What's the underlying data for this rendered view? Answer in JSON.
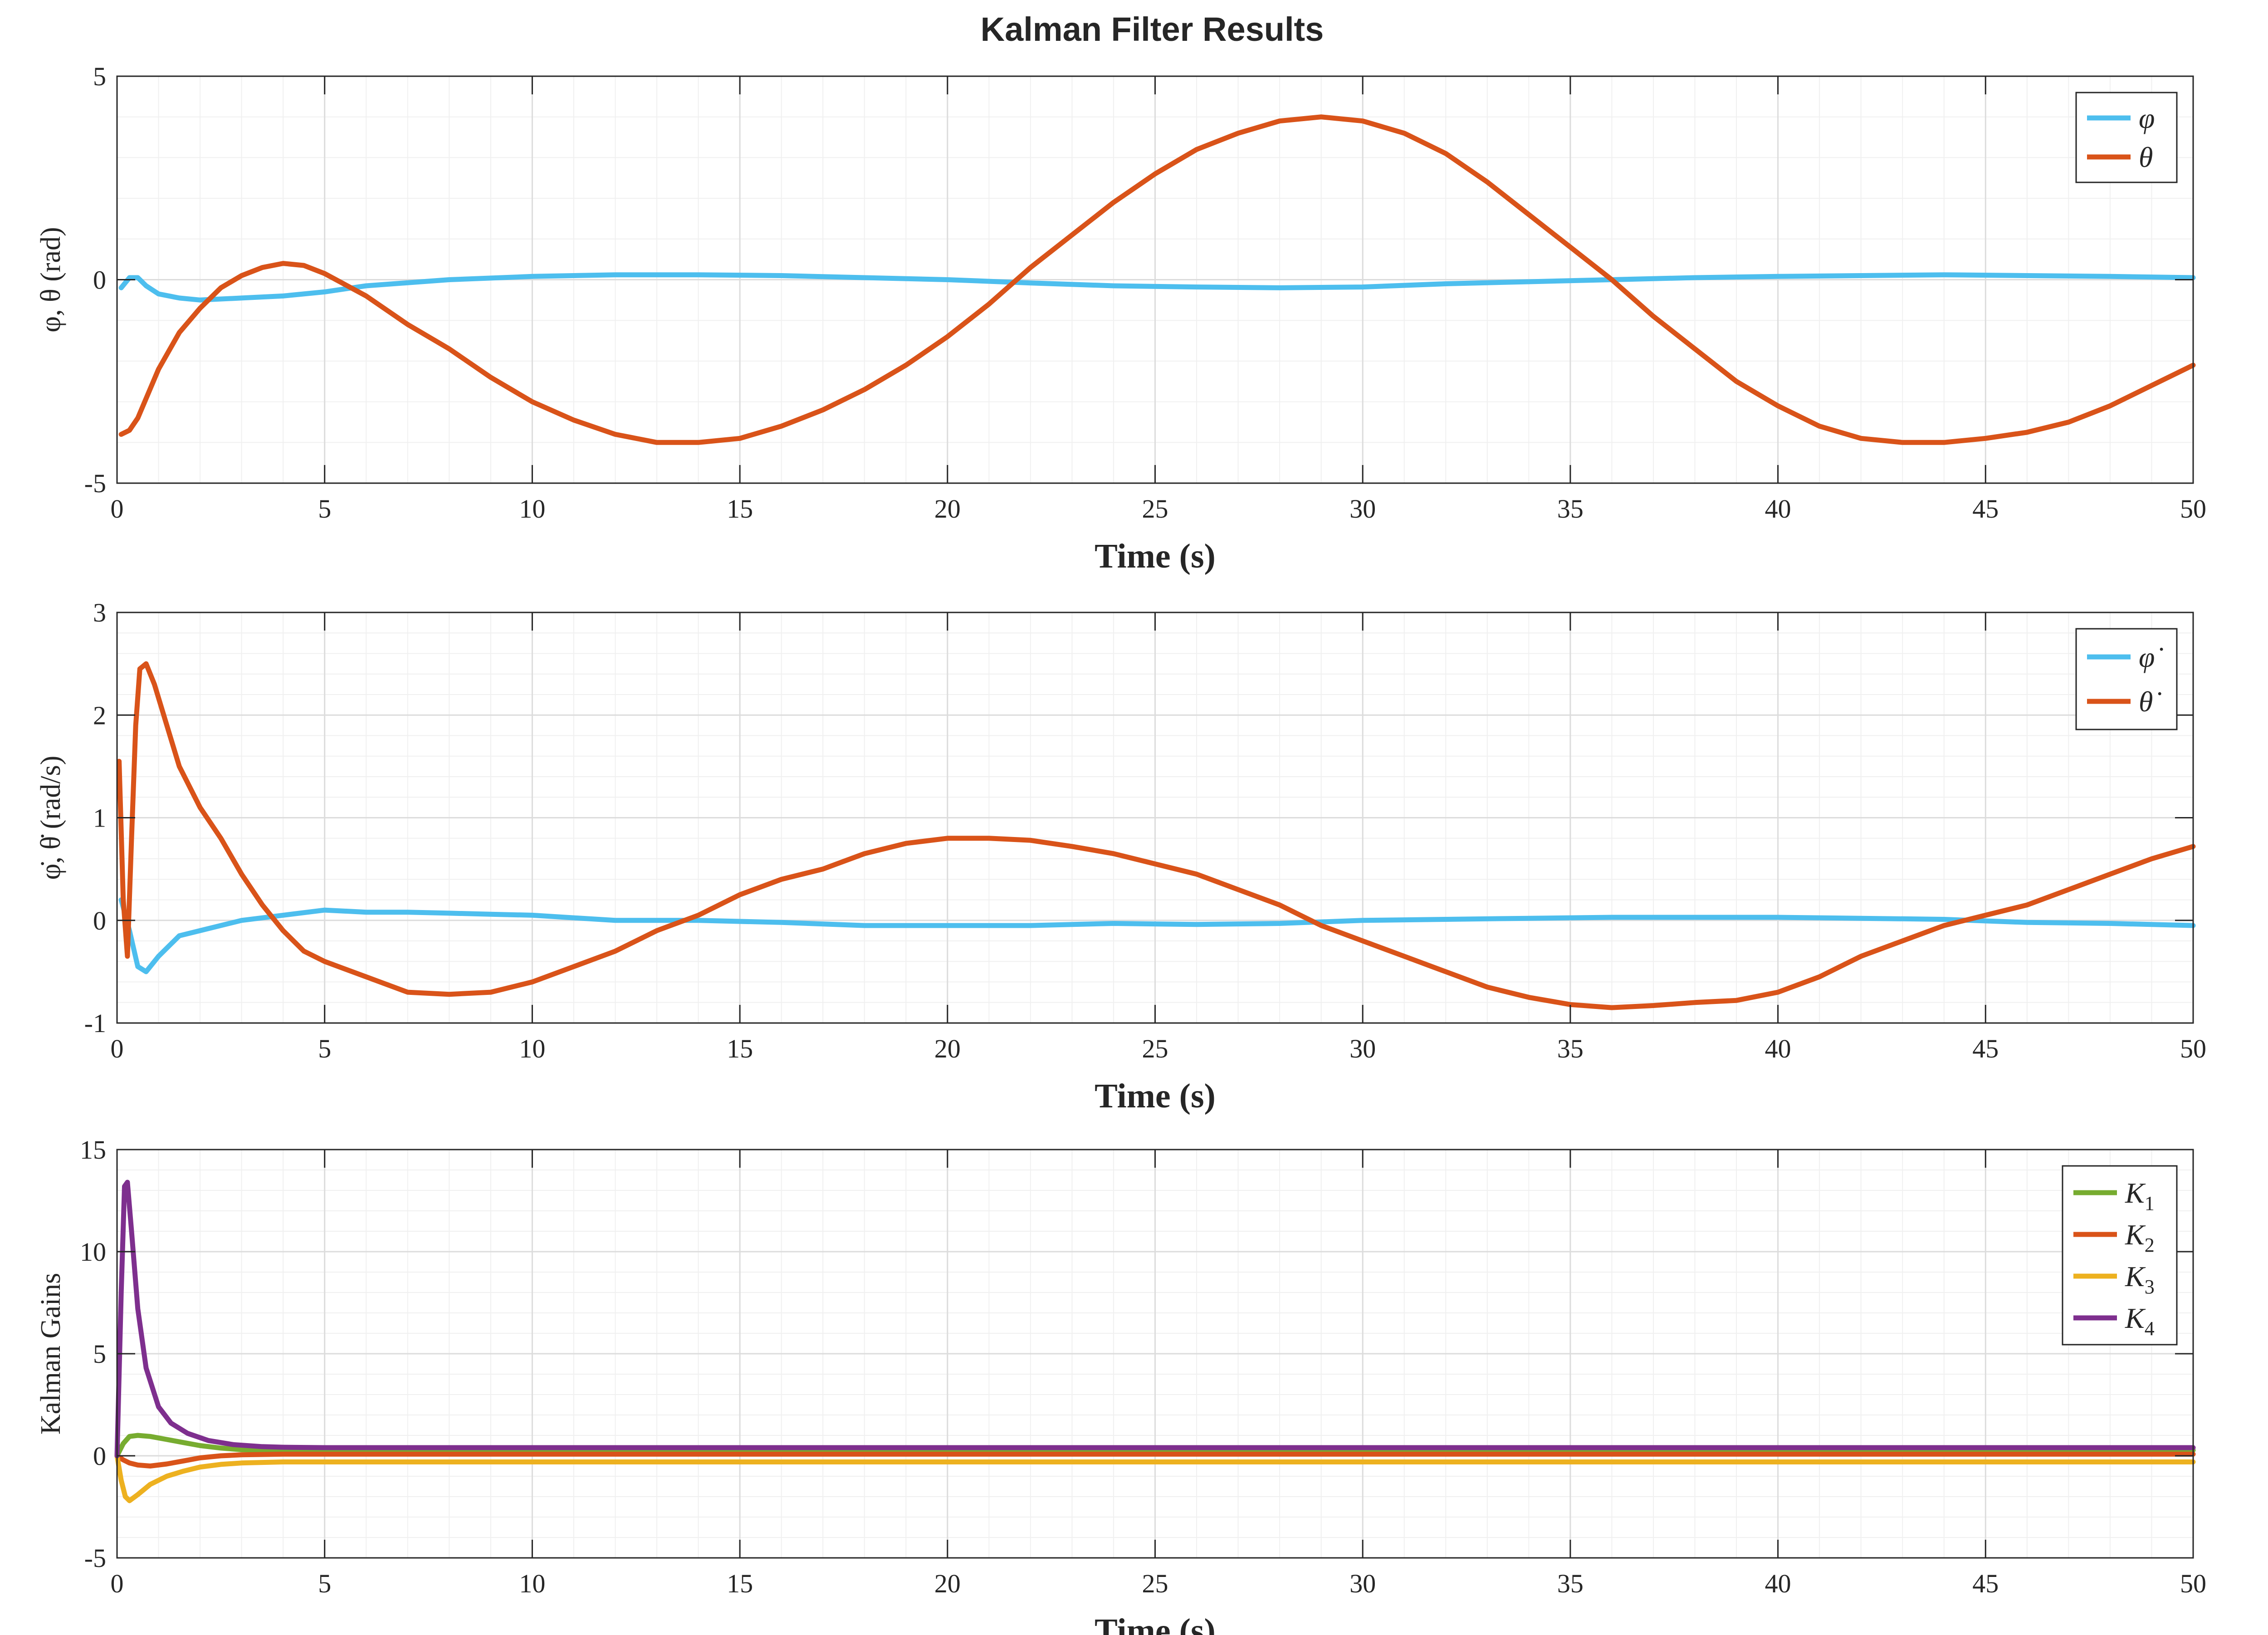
{
  "figure": {
    "title": "Kalman Filter Results"
  },
  "chart_data": [
    {
      "type": "line",
      "title": "Kalman Filter Results",
      "xlabel": "Time (s)",
      "ylabel": "φ, θ (rad)",
      "xlim": [
        0,
        50
      ],
      "ylim": [
        -5,
        5
      ],
      "xticks": [
        0,
        5,
        10,
        15,
        20,
        25,
        30,
        35,
        40,
        45,
        50
      ],
      "yticks": [
        -5,
        0,
        5
      ],
      "grid": true,
      "minor_grid": true,
      "legend_position": "top-right",
      "series": [
        {
          "name": "φ",
          "color": "#4DBEEE",
          "x": [
            0.1,
            0.3,
            0.5,
            0.7,
            1,
            1.5,
            2,
            3,
            4,
            5,
            6,
            8,
            10,
            12,
            14,
            16,
            18,
            20,
            22,
            24,
            26,
            28,
            30,
            32,
            34,
            36,
            38,
            40,
            42,
            44,
            46,
            48,
            50
          ],
          "y": [
            -0.2,
            0.05,
            0.05,
            -0.15,
            -0.35,
            -0.45,
            -0.5,
            -0.45,
            -0.4,
            -0.3,
            -0.15,
            0,
            0.08,
            0.12,
            0.12,
            0.1,
            0.05,
            0,
            -0.08,
            -0.15,
            -0.18,
            -0.2,
            -0.18,
            -0.1,
            -0.05,
            0,
            0.05,
            0.08,
            0.1,
            0.12,
            0.1,
            0.08,
            0.05
          ]
        },
        {
          "name": "θ",
          "color": "#D95319",
          "x": [
            0.1,
            0.3,
            0.5,
            1,
            1.5,
            2,
            2.5,
            3,
            3.5,
            4,
            4.5,
            5,
            6,
            7,
            8,
            9,
            10,
            11,
            12,
            13,
            14,
            15,
            16,
            17,
            18,
            19,
            20,
            21,
            22,
            23,
            24,
            25,
            26,
            27,
            28,
            29,
            30,
            31,
            32,
            33,
            34,
            35,
            36,
            37,
            38,
            39,
            40,
            41,
            42,
            43,
            44,
            45,
            46,
            47,
            48,
            49,
            50
          ],
          "y": [
            -3.8,
            -3.7,
            -3.4,
            -2.2,
            -1.3,
            -0.7,
            -0.2,
            0.1,
            0.3,
            0.4,
            0.35,
            0.15,
            -0.4,
            -1.1,
            -1.7,
            -2.4,
            -3,
            -3.45,
            -3.8,
            -4,
            -4,
            -3.9,
            -3.6,
            -3.2,
            -2.7,
            -2.1,
            -1.4,
            -0.6,
            0.3,
            1.1,
            1.9,
            2.6,
            3.2,
            3.6,
            3.9,
            4,
            3.9,
            3.6,
            3.1,
            2.4,
            1.6,
            0.8,
            0,
            -0.9,
            -1.7,
            -2.5,
            -3.1,
            -3.6,
            -3.9,
            -4,
            -4,
            -3.9,
            -3.75,
            -3.5,
            -3.1,
            -2.6,
            -2.1
          ]
        }
      ]
    },
    {
      "type": "line",
      "xlabel": "Time (s)",
      "ylabel": "φ̇, θ̇ (rad/s)",
      "xlim": [
        0,
        50
      ],
      "ylim": [
        -1,
        3
      ],
      "xticks": [
        0,
        5,
        10,
        15,
        20,
        25,
        30,
        35,
        40,
        45,
        50
      ],
      "yticks": [
        -1,
        0,
        1,
        2,
        3
      ],
      "grid": true,
      "minor_grid": true,
      "legend_position": "top-right",
      "series": [
        {
          "name": "φ̇",
          "color": "#4DBEEE",
          "x": [
            0.1,
            0.3,
            0.5,
            0.7,
            1,
            1.5,
            2,
            3,
            4,
            5,
            6,
            7,
            8,
            9,
            10,
            12,
            14,
            16,
            18,
            20,
            22,
            24,
            26,
            28,
            30,
            32,
            34,
            36,
            38,
            40,
            42,
            44,
            46,
            48,
            50
          ],
          "y": [
            0.2,
            -0.1,
            -0.45,
            -0.5,
            -0.35,
            -0.15,
            -0.1,
            0,
            0.05,
            0.1,
            0.08,
            0.08,
            0.07,
            0.06,
            0.05,
            0,
            0,
            -0.02,
            -0.05,
            -0.05,
            -0.05,
            -0.03,
            -0.04,
            -0.03,
            0,
            0.01,
            0.02,
            0.03,
            0.03,
            0.03,
            0.02,
            0.01,
            -0.02,
            -0.03,
            -0.05
          ]
        },
        {
          "name": "θ̇",
          "color": "#D95319",
          "x": [
            0.05,
            0.15,
            0.25,
            0.35,
            0.45,
            0.55,
            0.7,
            0.9,
            1.2,
            1.5,
            2,
            2.5,
            3,
            3.5,
            4,
            4.5,
            5,
            6,
            7,
            8,
            9,
            10,
            11,
            12,
            13,
            14,
            15,
            16,
            17,
            18,
            19,
            20,
            21,
            22,
            23,
            24,
            25,
            26,
            27,
            28,
            29,
            30,
            31,
            32,
            33,
            34,
            35,
            36,
            37,
            38,
            39,
            40,
            41,
            42,
            43,
            44,
            45,
            46,
            47,
            48,
            49,
            50
          ],
          "y": [
            1.55,
            0.2,
            -0.35,
            0.8,
            1.9,
            2.45,
            2.5,
            2.3,
            1.9,
            1.5,
            1.1,
            0.8,
            0.45,
            0.15,
            -0.1,
            -0.3,
            -0.4,
            -0.55,
            -0.7,
            -0.72,
            -0.7,
            -0.6,
            -0.45,
            -0.3,
            -0.1,
            0.05,
            0.25,
            0.4,
            0.5,
            0.65,
            0.75,
            0.8,
            0.8,
            0.78,
            0.72,
            0.65,
            0.55,
            0.45,
            0.3,
            0.15,
            -0.05,
            -0.2,
            -0.35,
            -0.5,
            -0.65,
            -0.75,
            -0.82,
            -0.85,
            -0.83,
            -0.8,
            -0.78,
            -0.7,
            -0.55,
            -0.35,
            -0.2,
            -0.05,
            0.05,
            0.15,
            0.3,
            0.45,
            0.6,
            0.72
          ]
        }
      ]
    },
    {
      "type": "line",
      "xlabel": "Time (s)",
      "ylabel": "Kalman Gains",
      "xlim": [
        0,
        50
      ],
      "ylim": [
        -5,
        15
      ],
      "xticks": [
        0,
        5,
        10,
        15,
        20,
        25,
        30,
        35,
        40,
        45,
        50
      ],
      "yticks": [
        -5,
        0,
        5,
        10,
        15
      ],
      "grid": true,
      "minor_grid": true,
      "legend_position": "top-right",
      "series": [
        {
          "name": "K1",
          "color": "#77AC30",
          "x": [
            0,
            0.15,
            0.3,
            0.5,
            0.8,
            1.2,
            1.6,
            2,
            2.5,
            3,
            3.5,
            4,
            5,
            10,
            20,
            30,
            40,
            50
          ],
          "y": [
            0,
            0.6,
            0.95,
            1,
            0.95,
            0.8,
            0.65,
            0.5,
            0.38,
            0.3,
            0.28,
            0.27,
            0.27,
            0.27,
            0.27,
            0.27,
            0.27,
            0.27
          ]
        },
        {
          "name": "K2",
          "color": "#D95319",
          "x": [
            0,
            0.15,
            0.3,
            0.5,
            0.8,
            1.2,
            1.6,
            2,
            2.5,
            3,
            4,
            5,
            10,
            20,
            30,
            40,
            50
          ],
          "y": [
            0,
            -0.2,
            -0.35,
            -0.45,
            -0.5,
            -0.4,
            -0.25,
            -0.1,
            0,
            0.05,
            0.08,
            0.08,
            0.08,
            0.08,
            0.08,
            0.08,
            0.08
          ]
        },
        {
          "name": "K3",
          "color": "#EDB120",
          "x": [
            0,
            0.1,
            0.2,
            0.3,
            0.5,
            0.8,
            1.2,
            1.6,
            2,
            2.5,
            3,
            4,
            5,
            10,
            20,
            30,
            40,
            50
          ],
          "y": [
            0,
            -1.2,
            -2,
            -2.2,
            -1.9,
            -1.4,
            -1.0,
            -0.75,
            -0.55,
            -0.42,
            -0.35,
            -0.3,
            -0.3,
            -0.3,
            -0.3,
            -0.3,
            -0.3,
            -0.3
          ]
        },
        {
          "name": "K4",
          "color": "#7E2F8E",
          "x": [
            0,
            0.1,
            0.18,
            0.25,
            0.35,
            0.5,
            0.7,
            1,
            1.3,
            1.7,
            2.2,
            2.8,
            3.5,
            4,
            5,
            10,
            20,
            30,
            40,
            50
          ],
          "y": [
            0,
            8,
            13.2,
            13.4,
            11,
            7.2,
            4.3,
            2.4,
            1.6,
            1.1,
            0.75,
            0.55,
            0.45,
            0.42,
            0.4,
            0.4,
            0.4,
            0.4,
            0.4,
            0.4
          ]
        }
      ]
    }
  ]
}
